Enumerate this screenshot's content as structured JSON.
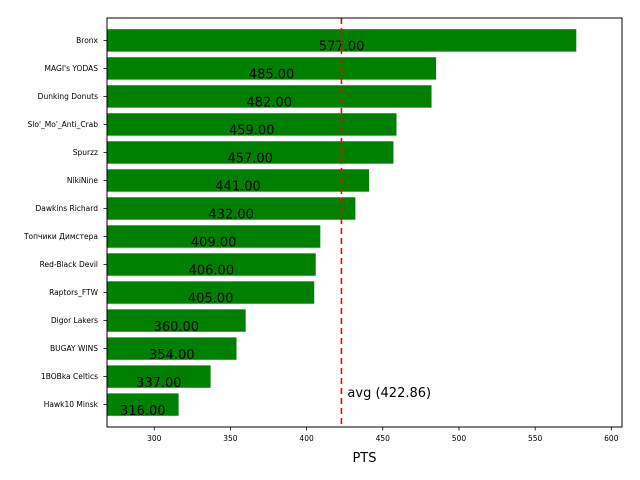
{
  "chart_data": {
    "type": "bar",
    "orientation": "horizontal",
    "categories": [
      "Bronx",
      "MAGI's YODAS",
      "Dunking Donuts",
      "Slo'_Mo'_Anti_Crab",
      "Spurzz",
      "NikiNine",
      "Dawkins Richard",
      "Топчики Димстера",
      "Red-Black Devil",
      "Raptors_FTW",
      "Digor Lakers",
      "BUGAY WINS",
      "1BOBka Celtics",
      "Hawk10 Minsk"
    ],
    "values": [
      577,
      485,
      482,
      459,
      457,
      441,
      432,
      409,
      406,
      405,
      360,
      354,
      337,
      316
    ],
    "value_labels": [
      "577.00",
      "485.00",
      "482.00",
      "459.00",
      "457.00",
      "441.00",
      "432.00",
      "409.00",
      "406.00",
      "405.00",
      "360.00",
      "354.00",
      "337.00",
      "316.00"
    ],
    "title": "",
    "xlabel": "PTS",
    "ylabel": "",
    "xlim": [
      269,
      607
    ],
    "xticks": [
      300,
      350,
      400,
      450,
      500,
      550,
      600
    ],
    "grid": false,
    "bar_color": "#008000",
    "reference_line": {
      "value": 422.86,
      "label": "avg (422.86)",
      "color": "#ff0000",
      "style": "dashed"
    }
  }
}
